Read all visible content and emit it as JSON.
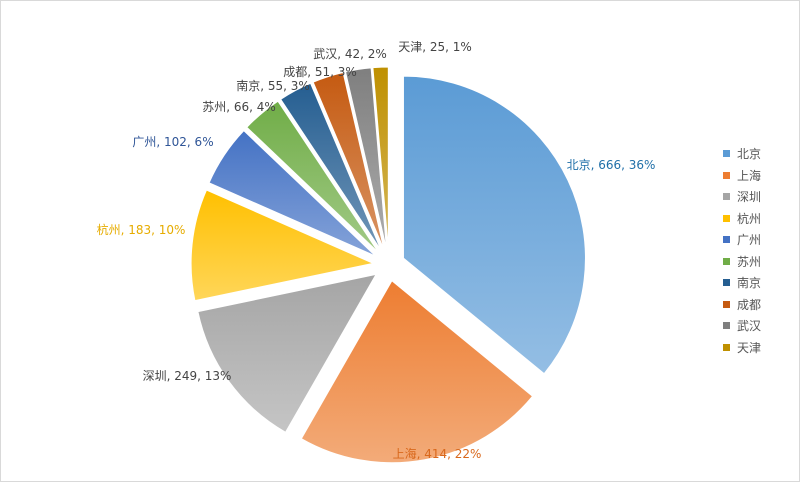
{
  "chart_data": {
    "type": "pie",
    "title": "",
    "legend_position": "right",
    "slices": [
      {
        "name": "北京",
        "value": 666,
        "percent": "36%",
        "color": "#5b9bd5",
        "label": "北京, 666, 36%",
        "label_color": "#1f6fa8"
      },
      {
        "name": "上海",
        "value": 414,
        "percent": "22%",
        "color": "#ed7d31",
        "label": "上海, 414, 22%",
        "label_color": "#d9681c"
      },
      {
        "name": "深圳",
        "value": 249,
        "percent": "13%",
        "color": "#a5a5a5",
        "label": "深圳, 249, 13%",
        "label_color": "#444444"
      },
      {
        "name": "杭州",
        "value": 183,
        "percent": "10%",
        "color": "#ffc000",
        "label": "杭州, 183, 10%",
        "label_color": "#e6ac00"
      },
      {
        "name": "广州",
        "value": 102,
        "percent": "6%",
        "color": "#4472c4",
        "label": "广州, 102, 6%",
        "label_color": "#2f5597"
      },
      {
        "name": "苏州",
        "value": 66,
        "percent": "4%",
        "color": "#70ad47",
        "label": "苏州, 66, 4%",
        "label_color": "#444444"
      },
      {
        "name": "南京",
        "value": 55,
        "percent": "3%",
        "color": "#255e91",
        "label": "南京, 55, 3%",
        "label_color": "#444444"
      },
      {
        "name": "成都",
        "value": 51,
        "percent": "3%",
        "color": "#c55a11",
        "label": "成都, 51, 3%",
        "label_color": "#444444"
      },
      {
        "name": "武汉",
        "value": 42,
        "percent": "2%",
        "color": "#7f7f7f",
        "label": "武汉, 42, 2%",
        "label_color": "#444444"
      },
      {
        "name": "天津",
        "value": 25,
        "percent": "1%",
        "color": "#bf9000",
        "label": "天津, 25, 1%",
        "label_color": "#444444"
      }
    ]
  }
}
